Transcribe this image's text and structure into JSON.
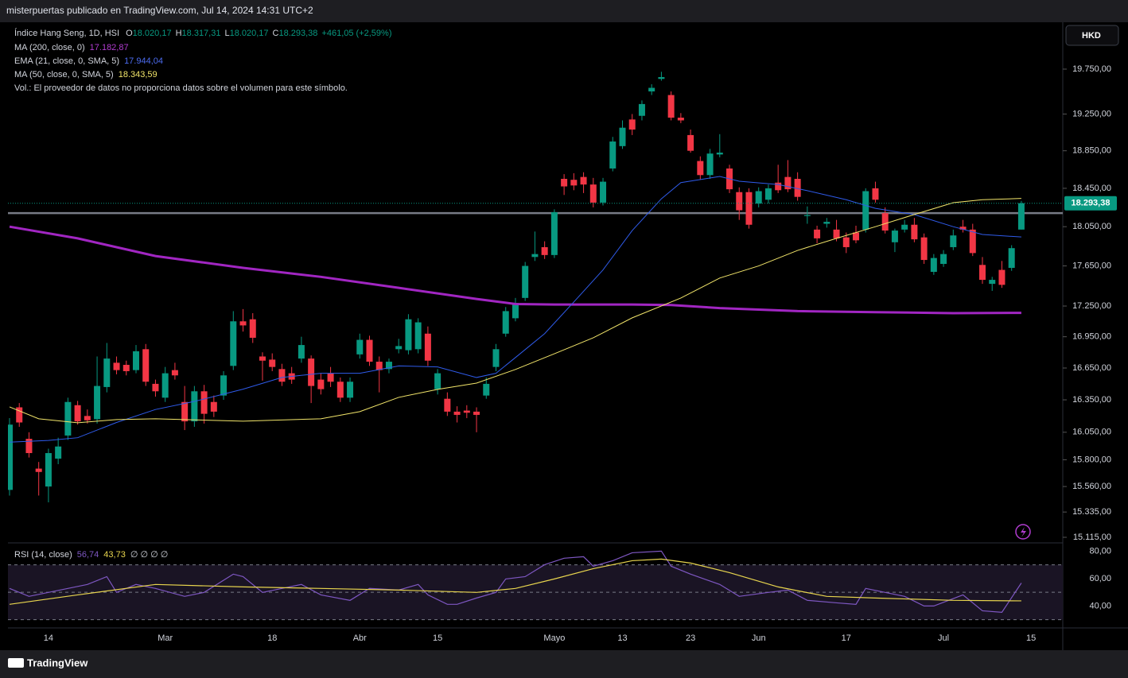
{
  "header": "misterpuertas publicado en TradingView.com, Jul 14, 2024 14:31 UTC+2",
  "currency": "HKD",
  "brand": "TradingView",
  "legend": {
    "symbol": "Índice Hang Seng, 1D, HSI",
    "ohlc": [
      {
        "key": "O",
        "label": "18.020,17"
      },
      {
        "key": "H",
        "label": "18.317,31"
      },
      {
        "key": "L",
        "label": "18.020,17"
      },
      {
        "key": "C",
        "label": "18.293,38"
      }
    ],
    "change": "+461,05 (+2,59%)",
    "indicators": [
      {
        "name": "MA (200, close, 0)",
        "label": "17.182,87",
        "color": "#b13cd0"
      },
      {
        "name": "EMA (21, close, 0, SMA, 5)",
        "label": "17.944,04",
        "color": "#4c6cf0"
      },
      {
        "name": "MA (50, close, 0, SMA, 5)",
        "label": "18.343,59",
        "color": "#f2e56a"
      }
    ],
    "volume_note": "Vol.: El proveedor de datos no proporciona datos sobre el volumen para este símbolo."
  },
  "chart_data": [
    {
      "type": "candlestick",
      "log_scale": true,
      "ylim": [
        15067,
        20286
      ],
      "yticks": [
        {
          "value": 19750,
          "label": "19.750,00"
        },
        {
          "value": 19250,
          "label": "19.250,00"
        },
        {
          "value": 18850,
          "label": "18.850,00"
        },
        {
          "value": 18450,
          "label": "18.450,00"
        },
        {
          "value": 18050,
          "label": "18.050,00"
        },
        {
          "value": 17650,
          "label": "17.650,00"
        },
        {
          "value": 17250,
          "label": "17.250,00"
        },
        {
          "value": 16950,
          "label": "16.950,00"
        },
        {
          "value": 16650,
          "label": "16.650,00"
        },
        {
          "value": 16350,
          "label": "16.350,00"
        },
        {
          "value": 16050,
          "label": "16.050,00"
        },
        {
          "value": 15800,
          "label": "15.800,00"
        },
        {
          "value": 15560,
          "label": "15.560,00"
        },
        {
          "value": 15335,
          "label": "15.335,00"
        },
        {
          "value": 15115,
          "label": "15.115,00"
        }
      ],
      "up_color": "#089981",
      "down_color": "#f23645",
      "last_price_label": "18.293,38",
      "hline": 18190,
      "categories": [
        null,
        null,
        null,
        null,
        "14",
        null,
        null,
        null,
        null,
        null,
        null,
        null,
        null,
        null,
        null,
        null,
        "Mar",
        null,
        null,
        null,
        null,
        null,
        null,
        null,
        null,
        null,
        null,
        "18",
        null,
        null,
        null,
        null,
        null,
        null,
        null,
        null,
        "Abr",
        null,
        null,
        null,
        null,
        null,
        null,
        null,
        "15",
        null,
        null,
        null,
        null,
        null,
        null,
        null,
        null,
        null,
        null,
        null,
        "Mayo",
        null,
        null,
        null,
        null,
        null,
        null,
        "13",
        null,
        null,
        null,
        null,
        null,
        null,
        "23",
        null,
        null,
        null,
        null,
        null,
        null,
        "Jun",
        null,
        null,
        null,
        null,
        null,
        null,
        null,
        null,
        "17",
        null,
        null,
        null,
        null,
        null,
        null,
        null,
        null,
        null,
        "Jul",
        null,
        null,
        null,
        null,
        null,
        null,
        null,
        null,
        "15"
      ],
      "candles": [
        [
          15530,
          16180,
          15480,
          16120
        ],
        [
          16280,
          16320,
          16100,
          16140
        ],
        [
          15990,
          16050,
          15820,
          15860
        ],
        [
          15720,
          15780,
          15480,
          15690
        ],
        [
          15560,
          15900,
          15420,
          15860
        ],
        [
          15810,
          16000,
          15760,
          15920
        ],
        [
          16020,
          16370,
          15980,
          16330
        ],
        [
          16300,
          16340,
          16120,
          16150
        ],
        [
          16200,
          16260,
          16130,
          16160
        ],
        [
          16170,
          16760,
          16130,
          16480
        ],
        [
          16470,
          16890,
          16420,
          16740
        ],
        [
          16700,
          16760,
          16590,
          16630
        ],
        [
          16680,
          16720,
          16580,
          16620
        ],
        [
          16630,
          16870,
          16600,
          16810
        ],
        [
          16830,
          16880,
          16480,
          16520
        ],
        [
          16500,
          16540,
          16380,
          16430
        ],
        [
          16370,
          16660,
          16330,
          16600
        ],
        [
          16630,
          16700,
          16540,
          16580
        ],
        [
          16330,
          16480,
          16070,
          16150
        ],
        [
          16150,
          16480,
          16100,
          16430
        ],
        [
          16430,
          16490,
          16130,
          16220
        ],
        [
          16330,
          16390,
          16190,
          16240
        ],
        [
          16390,
          16620,
          16350,
          16580
        ],
        [
          16670,
          17200,
          16630,
          17100
        ],
        [
          17100,
          17220,
          17000,
          17060
        ],
        [
          17120,
          17180,
          16890,
          16940
        ],
        [
          16760,
          16800,
          16530,
          16720
        ],
        [
          16730,
          16790,
          16620,
          16660
        ],
        [
          16640,
          16690,
          16480,
          16520
        ],
        [
          16600,
          16660,
          16500,
          16540
        ],
        [
          16740,
          16950,
          16700,
          16870
        ],
        [
          16740,
          16770,
          16320,
          16480
        ],
        [
          16540,
          16600,
          16400,
          16450
        ],
        [
          16600,
          16660,
          16470,
          16520
        ],
        [
          16520,
          16560,
          16330,
          16370
        ],
        [
          16370,
          16560,
          16330,
          16520
        ],
        [
          16780,
          16980,
          16740,
          16920
        ],
        [
          16920,
          16960,
          16670,
          16710
        ],
        [
          16710,
          16760,
          16420,
          16630
        ],
        [
          16640,
          16740,
          16600,
          16710
        ],
        [
          16830,
          16930,
          16790,
          16860
        ],
        [
          16820,
          17170,
          16780,
          17120
        ],
        [
          16830,
          17130,
          16790,
          17090
        ],
        [
          16980,
          17050,
          16670,
          16720
        ],
        [
          16450,
          16640,
          16400,
          16600
        ],
        [
          16360,
          16420,
          16200,
          16240
        ],
        [
          16240,
          16290,
          16140,
          16210
        ],
        [
          16250,
          16300,
          16180,
          16230
        ],
        [
          16240,
          16280,
          16050,
          16210
        ],
        [
          16390,
          16560,
          16360,
          16500
        ],
        [
          16660,
          16880,
          16620,
          16830
        ],
        [
          16980,
          17240,
          16950,
          17200
        ],
        [
          17130,
          17330,
          17100,
          17280
        ],
        [
          17330,
          17690,
          17300,
          17650
        ],
        [
          17740,
          18000,
          17700,
          17770
        ],
        [
          17840,
          17900,
          17720,
          17760
        ],
        [
          17760,
          18230,
          17730,
          18200
        ],
        [
          18550,
          18600,
          18380,
          18470
        ],
        [
          18540,
          18610,
          18430,
          18480
        ],
        [
          18570,
          18620,
          18400,
          18490
        ],
        [
          18490,
          18560,
          18250,
          18300
        ],
        [
          18300,
          18560,
          18270,
          18520
        ],
        [
          18660,
          19000,
          18630,
          18950
        ],
        [
          18900,
          19180,
          18870,
          19100
        ],
        [
          19190,
          19250,
          19020,
          19080
        ],
        [
          19230,
          19400,
          19180,
          19360
        ],
        [
          19500,
          19580,
          19460,
          19540
        ],
        [
          19640,
          19720,
          19620,
          19660
        ],
        [
          19460,
          19500,
          19180,
          19210
        ],
        [
          19210,
          19260,
          19150,
          19180
        ],
        [
          19020,
          19080,
          18830,
          18850
        ],
        [
          18740,
          18790,
          18540,
          18590
        ],
        [
          18590,
          18870,
          18550,
          18820
        ],
        [
          18810,
          19030,
          18780,
          18830
        ],
        [
          18660,
          18700,
          18400,
          18440
        ],
        [
          18410,
          18460,
          18120,
          18220
        ],
        [
          18410,
          18450,
          18030,
          18070
        ],
        [
          18290,
          18460,
          18250,
          18420
        ],
        [
          18330,
          18490,
          18290,
          18450
        ],
        [
          18510,
          18700,
          18400,
          18430
        ],
        [
          18570,
          18750,
          18410,
          18440
        ],
        [
          18550,
          18620,
          18320,
          18360
        ],
        [
          18160,
          18260,
          18080,
          18170
        ],
        [
          18020,
          18060,
          17880,
          17930
        ],
        [
          18080,
          18140,
          18040,
          18100
        ],
        [
          18020,
          18120,
          17900,
          17930
        ],
        [
          17940,
          17990,
          17780,
          17840
        ],
        [
          17990,
          18060,
          17880,
          17910
        ],
        [
          18020,
          18450,
          17990,
          18420
        ],
        [
          18450,
          18520,
          18300,
          18330
        ],
        [
          18190,
          18250,
          17980,
          18010
        ],
        [
          17890,
          18030,
          17790,
          18010
        ],
        [
          18020,
          18120,
          17990,
          18070
        ],
        [
          18070,
          18140,
          17890,
          17920
        ],
        [
          17940,
          17980,
          17670,
          17710
        ],
        [
          17590,
          17770,
          17560,
          17730
        ],
        [
          17670,
          17810,
          17640,
          17770
        ],
        [
          17840,
          18020,
          17810,
          17960
        ],
        [
          18050,
          18120,
          17990,
          18020
        ],
        [
          18020,
          18080,
          17750,
          17780
        ],
        [
          17660,
          17740,
          17470,
          17510
        ],
        [
          17470,
          17540,
          17400,
          17510
        ],
        [
          17610,
          17700,
          17430,
          17460
        ],
        [
          17630,
          17860,
          17600,
          17830
        ],
        [
          18020.17,
          18317.31,
          18020.17,
          18293.38
        ],
        null
      ],
      "series": [
        {
          "name": "MA (200, close, 0)",
          "color": "#a126c2",
          "width": 3,
          "x": [
            0,
            7,
            15,
            24,
            32,
            40,
            48,
            52,
            56,
            64,
            68,
            73,
            81,
            89,
            97,
            104
          ],
          "values": [
            18050,
            17930,
            17750,
            17630,
            17540,
            17430,
            17320,
            17270,
            17265,
            17265,
            17260,
            17230,
            17200,
            17190,
            17180,
            17182.87
          ]
        },
        {
          "name": "EMA (21, close, 0, SMA, 5)",
          "color": "#2f5bea",
          "width": 1,
          "x": [
            0,
            4,
            7,
            11,
            15,
            19,
            24,
            28,
            32,
            36,
            40,
            44,
            48,
            50,
            52,
            55,
            58,
            61,
            64,
            67,
            69,
            73,
            75,
            79,
            82,
            86,
            89,
            93,
            97,
            100,
            104
          ],
          "values": [
            15960,
            15975,
            16000,
            16140,
            16260,
            16335,
            16450,
            16560,
            16600,
            16600,
            16670,
            16660,
            16560,
            16600,
            16750,
            16980,
            17290,
            17610,
            18010,
            18340,
            18510,
            18575,
            18525,
            18490,
            18425,
            18330,
            18240,
            18175,
            18050,
            17970,
            17944.04
          ]
        },
        {
          "name": "MA (50, close, 0, SMA, 5)",
          "color": "#f2e56a",
          "width": 1,
          "x": [
            0,
            3,
            7,
            11,
            15,
            24,
            32,
            36,
            40,
            44,
            48,
            52,
            56,
            60,
            64,
            69,
            73,
            77,
            81,
            85,
            89,
            93,
            97,
            100,
            104
          ],
          "values": [
            16284,
            16174,
            16137,
            16167,
            16174,
            16152,
            16174,
            16240,
            16373,
            16448,
            16507,
            16636,
            16786,
            16940,
            17134,
            17329,
            17528,
            17650,
            17807,
            17930,
            18050,
            18176,
            18299,
            18330,
            18343.59
          ]
        }
      ]
    },
    {
      "type": "line",
      "title": "RSI (14, close)",
      "value_labels": [
        "56,74",
        "43,73"
      ],
      "empty_labels": "∅ ∅ ∅ ∅",
      "ylim": [
        24,
        86
      ],
      "yticks": [
        {
          "value": 80,
          "label": "80,00"
        },
        {
          "value": 60,
          "label": "60,00"
        },
        {
          "value": 40,
          "label": "40,00"
        }
      ],
      "levels": [
        70,
        50,
        30
      ],
      "band_color": "#1a1424",
      "series": [
        {
          "name": "RSI",
          "color": "#7e57c2",
          "x": [
            0,
            2,
            6,
            8,
            10,
            11,
            13,
            15,
            18,
            20,
            23,
            24,
            26,
            28,
            30,
            32,
            35,
            37,
            40,
            42,
            43,
            45,
            46,
            48,
            50,
            51,
            53,
            55,
            57,
            59,
            60,
            62,
            64,
            67,
            68,
            70,
            73,
            75,
            78,
            80,
            82,
            85,
            87,
            88,
            90,
            92,
            94,
            95,
            98,
            100,
            102,
            104
          ],
          "values": [
            52.8,
            47.0,
            52.8,
            55.7,
            61.4,
            49.9,
            55.7,
            52.8,
            47.0,
            49.9,
            63.2,
            61.4,
            49.9,
            52.8,
            55.7,
            48.1,
            44.1,
            52.8,
            51.6,
            55.7,
            48.1,
            41.2,
            41.2,
            45.8,
            49.9,
            59.7,
            61.4,
            70.1,
            74.8,
            75.9,
            69.0,
            73.0,
            78.8,
            80.0,
            69.0,
            63.2,
            55.7,
            47.0,
            49.9,
            51.6,
            44.1,
            42.3,
            41.2,
            52.8,
            49.9,
            47.0,
            40.0,
            40.0,
            48.1,
            36.5,
            35.4,
            56.74
          ]
        },
        {
          "name": "RSI MA",
          "color": "#e8d54e",
          "x": [
            0,
            7,
            15,
            24,
            32,
            40,
            48,
            52,
            56,
            60,
            64,
            67,
            70,
            74,
            79,
            84,
            89,
            97,
            104
          ],
          "values": [
            41.2,
            48.1,
            55.7,
            53.9,
            52.8,
            51.6,
            49.9,
            52.8,
            59.7,
            67.2,
            73.0,
            74.2,
            71.3,
            64.3,
            53.9,
            47.0,
            45.8,
            44.1,
            43.73
          ]
        }
      ]
    }
  ]
}
